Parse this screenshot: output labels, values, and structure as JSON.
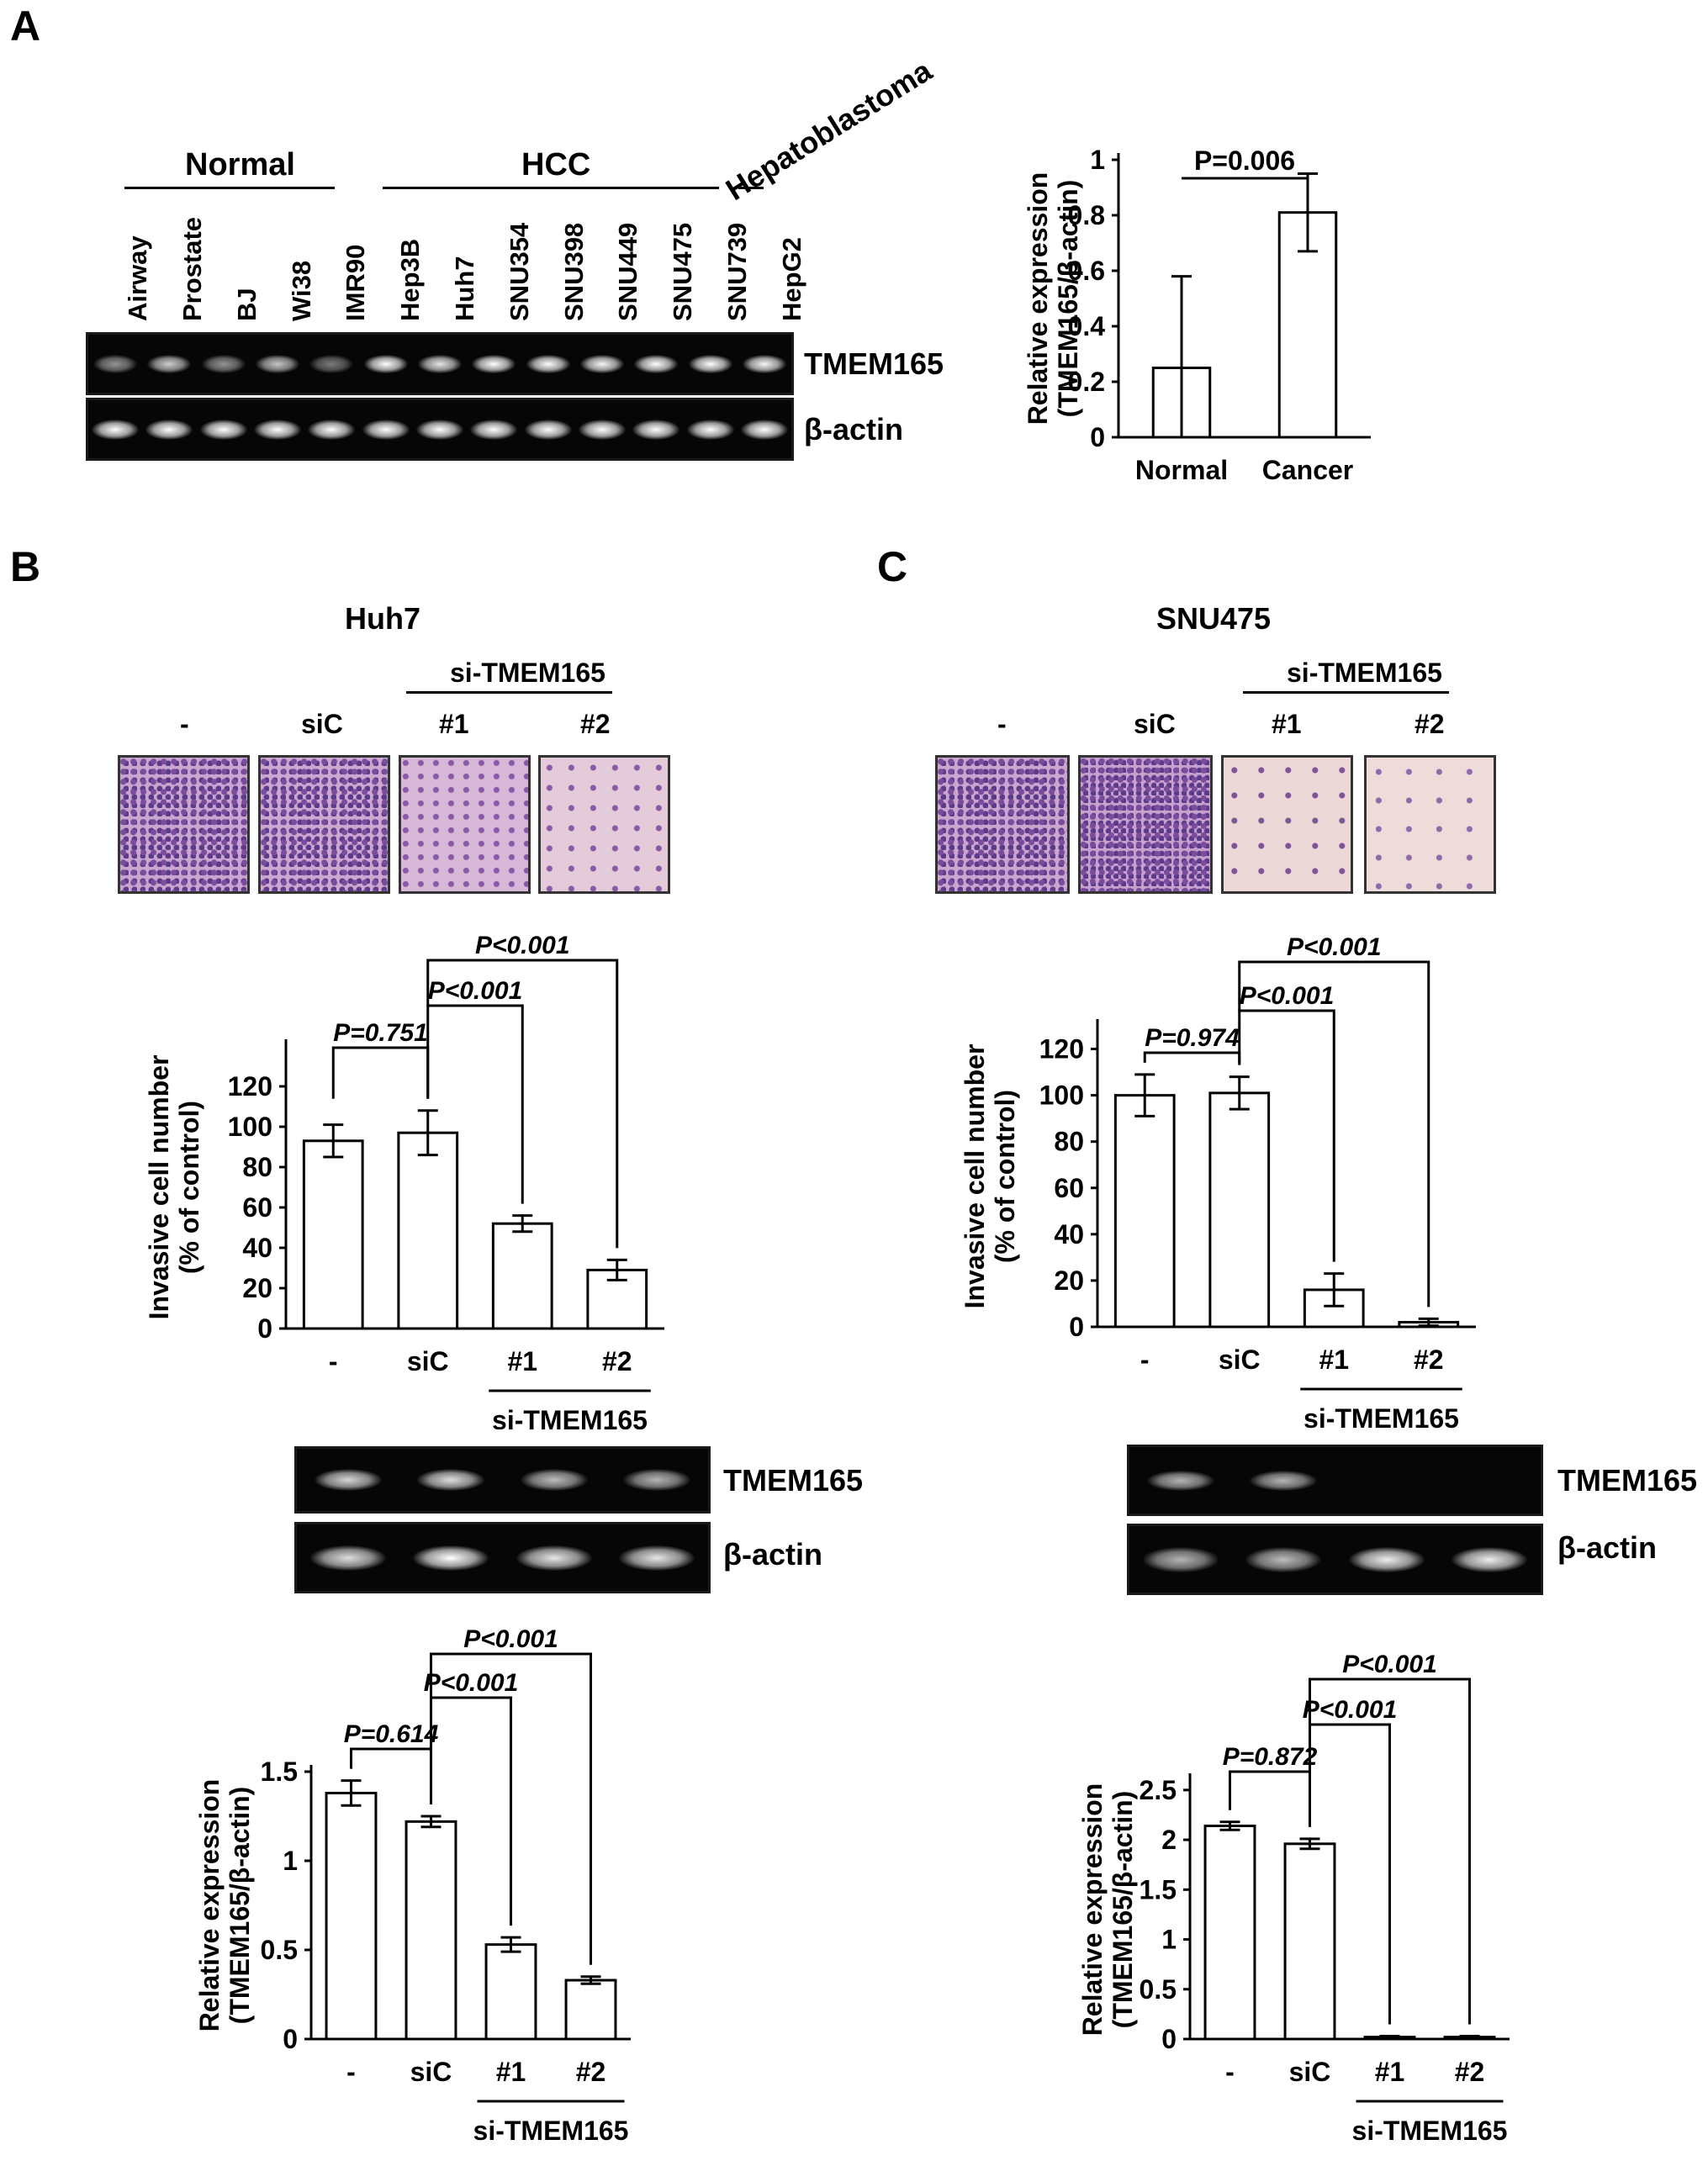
{
  "panels": {
    "A": {
      "letter": "A",
      "groups": {
        "normal": "Normal",
        "hcc": "HCC",
        "hepatoblastoma": "Hepatoblastoma"
      },
      "lanes": [
        "Airway",
        "Prostate",
        "BJ",
        "Wi38",
        "IMR90",
        "Hep3B",
        "Huh7",
        "SNU354",
        "SNU398",
        "SNU449",
        "SNU475",
        "SNU739",
        "HepG2"
      ],
      "gene": "TMEM165",
      "control": "β-actin",
      "gene_band_intensity": [
        0.35,
        0.7,
        0.35,
        0.65,
        0.2,
        1,
        0.85,
        1,
        1,
        0.95,
        1,
        1,
        0.95
      ],
      "actin_band_intensity": [
        1,
        1,
        1,
        1,
        1,
        1,
        1,
        1,
        1,
        1,
        1,
        1,
        1
      ],
      "chart_data": {
        "type": "bar",
        "categories": [
          "Normal",
          "Cancer"
        ],
        "values": [
          0.25,
          0.81
        ],
        "errors": [
          0.33,
          0.14
        ],
        "ylabel": "Relative expression\n(TMEM165/β-actin)",
        "ylim": [
          0,
          1
        ],
        "yticks": [
          "0",
          "0.2",
          "0.4",
          "0.6",
          "0.8",
          "1"
        ],
        "annotation": "P=0.006"
      }
    },
    "B": {
      "letter": "B",
      "title": "Huh7",
      "si_label": "si-TMEM165",
      "photo_labels": [
        "-",
        "siC",
        "#1",
        "#2"
      ],
      "gene": "TMEM165",
      "control": "β-actin",
      "gene_band_intensity": [
        0.75,
        0.8,
        0.6,
        0.55
      ],
      "actin_band_intensity": [
        0.8,
        1,
        0.85,
        0.85
      ],
      "invasion_chart": {
        "type": "bar",
        "categories": [
          "-",
          "siC",
          "#1",
          "#2"
        ],
        "values": [
          93,
          97,
          52,
          29
        ],
        "errors": [
          8,
          11,
          4,
          5
        ],
        "ylabel": "Invasive cell number\n(% of control)",
        "ylim": [
          0,
          140
        ],
        "yticks": [
          "0",
          "20",
          "40",
          "60",
          "80",
          "100",
          "120"
        ],
        "group_label": "si-TMEM165",
        "pvalues": [
          "P=0.751",
          "P<0.001",
          "P<0.001"
        ]
      },
      "expression_chart": {
        "type": "bar",
        "categories": [
          "-",
          "siC",
          "#1",
          "#2"
        ],
        "values": [
          1.38,
          1.22,
          0.53,
          0.33
        ],
        "errors": [
          0.07,
          0.03,
          0.04,
          0.02
        ],
        "ylabel": "Relative expression\n(TMEM165/β-actin)",
        "ylim": [
          0,
          1.5
        ],
        "yticks": [
          "0",
          "0.5",
          "1",
          "1.5"
        ],
        "group_label": "si-TMEM165",
        "pvalues": [
          "P=0.614",
          "P<0.001",
          "P<0.001"
        ]
      }
    },
    "C": {
      "letter": "C",
      "title": "SNU475",
      "si_label": "si-TMEM165",
      "photo_labels": [
        "-",
        "siC",
        "#1",
        "#2"
      ],
      "gene": "TMEM165",
      "control": "β-actin",
      "gene_band_intensity": [
        0.55,
        0.55,
        0,
        0
      ],
      "actin_band_intensity": [
        0.55,
        0.6,
        0.9,
        0.9
      ],
      "invasion_chart": {
        "type": "bar",
        "categories": [
          "-",
          "siC",
          "#1",
          "#2"
        ],
        "values": [
          100,
          101,
          16,
          2
        ],
        "errors": [
          9,
          7,
          7,
          1.5
        ],
        "ylabel": "Invasive cell number\n(% of control)",
        "ylim": [
          0,
          130
        ],
        "yticks": [
          "0",
          "20",
          "40",
          "60",
          "80",
          "100",
          "120"
        ],
        "group_label": "si-TMEM165",
        "pvalues": [
          "P=0.974",
          "P<0.001",
          "P<0.001"
        ]
      },
      "expression_chart": {
        "type": "bar",
        "categories": [
          "-",
          "siC",
          "#1",
          "#2"
        ],
        "values": [
          2.14,
          1.96,
          0.02,
          0.02
        ],
        "errors": [
          0.04,
          0.05,
          0.01,
          0.01
        ],
        "ylabel": "Relative expression\n(TMEM165/β-actin)",
        "ylim": [
          0,
          2.6
        ],
        "yticks": [
          "0",
          "0.5",
          "1",
          "1.5",
          "2",
          "2.5"
        ],
        "group_label": "si-TMEM165",
        "pvalues": [
          "P=0.872",
          "P<0.001",
          "P<0.001"
        ]
      }
    }
  }
}
